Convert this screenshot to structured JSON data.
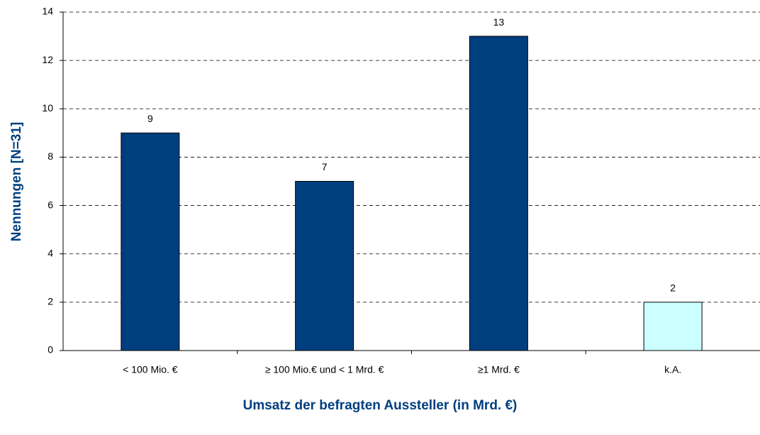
{
  "chart_data": {
    "type": "bar",
    "x_label": "Umsatz der befragten Aussteller (in Mrd. €)",
    "y_label": "Nennungen [N=31]",
    "categories": [
      "< 100 Mio. €",
      "≥ 100 Mio.€ und < 1 Mrd. €",
      "≥1 Mrd. €",
      "k.A."
    ],
    "values": [
      9,
      7,
      13,
      2
    ],
    "colors": [
      "#003f7f",
      "#003f7f",
      "#003f7f",
      "#ccffff"
    ],
    "ylim": [
      0,
      14
    ],
    "yticks": [
      0,
      2,
      4,
      6,
      8,
      10,
      12,
      14
    ],
    "grid": true
  }
}
